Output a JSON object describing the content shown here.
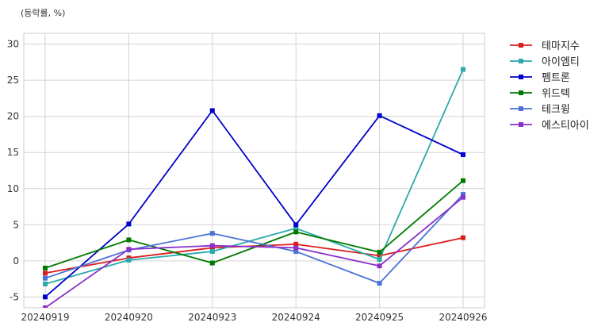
{
  "chart_data": {
    "type": "line",
    "unit_label": "(등락률, %)",
    "title": "",
    "xlabel": "",
    "ylabel": "",
    "categories": [
      "20240919",
      "20240920",
      "20240923",
      "20240924",
      "20240925",
      "20240926"
    ],
    "ylim": [
      -6.5,
      31.5
    ],
    "yticks": [
      -5,
      0,
      5,
      10,
      15,
      20,
      25,
      30
    ],
    "grid": true,
    "legend_position": "outside-top-right",
    "series": [
      {
        "name": "테마지수",
        "color": "#dd1c1c",
        "values": [
          -1.7,
          0.4,
          1.8,
          2.3,
          0.7,
          3.2
        ]
      },
      {
        "name": "아이엠티",
        "color": "#2aaaaa",
        "values": [
          -3.2,
          0.1,
          1.3,
          4.5,
          0.2,
          26.5
        ]
      },
      {
        "name": "펨트론",
        "color": "#0000cc",
        "values": [
          -5.0,
          5.1,
          20.8,
          5.0,
          20.1,
          14.7
        ]
      },
      {
        "name": "위드텍",
        "color": "#007a00",
        "values": [
          -1.0,
          2.9,
          -0.3,
          4.0,
          1.2,
          11.1
        ]
      },
      {
        "name": "테크윙",
        "color": "#4a72d4",
        "values": [
          -2.4,
          1.5,
          3.8,
          1.3,
          -3.1,
          9.2
        ]
      },
      {
        "name": "에스티아이",
        "color": "#8b2fc9",
        "values": [
          -6.5,
          1.6,
          2.1,
          1.8,
          -0.7,
          8.8
        ]
      }
    ]
  }
}
